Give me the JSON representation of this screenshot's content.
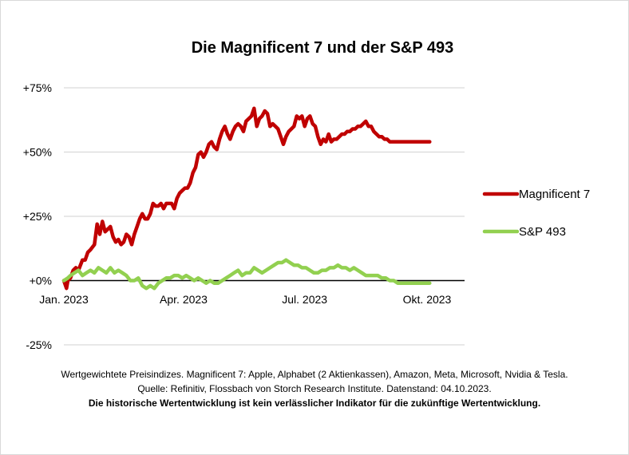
{
  "chart_data": {
    "type": "line",
    "title": "Die Magnificent 7 und der S&P 493",
    "xlabel": "",
    "ylabel": "",
    "ylim": [
      -25,
      75
    ],
    "yticks": [
      75,
      50,
      25,
      0,
      -25
    ],
    "ytick_labels": [
      "+75%",
      "+50%",
      "+25%",
      "+0%",
      "-25%"
    ],
    "xticks": [
      "Jan. 2023",
      "Apr. 2023",
      "Jul. 2023",
      "Okt. 2023"
    ],
    "xtick_days": [
      0,
      90,
      181,
      273
    ],
    "x_max_day": 276,
    "legend_position": "right",
    "series": [
      {
        "name": "Magnificent 7",
        "color": "#c00000",
        "days": [
          0,
          2,
          3,
          5,
          7,
          9,
          11,
          14,
          16,
          18,
          20,
          23,
          25,
          27,
          29,
          31,
          33,
          35,
          37,
          39,
          41,
          43,
          45,
          47,
          49,
          51,
          53,
          55,
          57,
          59,
          61,
          63,
          65,
          67,
          69,
          71,
          73,
          75,
          77,
          79,
          81,
          83,
          85,
          87,
          89,
          91,
          93,
          95,
          97,
          99,
          101,
          103,
          105,
          107,
          109,
          111,
          113,
          115,
          117,
          119,
          121,
          123,
          125,
          127,
          129,
          131,
          133,
          135,
          137,
          139,
          141,
          143,
          145,
          147,
          149,
          151,
          153,
          155,
          157,
          159,
          161,
          163,
          165,
          167,
          169,
          171,
          173,
          175,
          177,
          179,
          181,
          183,
          185,
          187,
          189,
          191,
          193,
          195,
          197,
          199,
          201,
          203,
          205,
          207,
          209,
          211,
          213,
          215,
          217,
          219,
          221,
          223,
          225,
          227,
          229,
          231,
          233,
          235,
          237,
          239,
          241,
          243,
          245,
          247,
          249,
          251,
          253,
          255,
          257,
          259,
          261,
          263,
          265,
          267,
          269,
          271,
          273,
          275
        ],
        "values": [
          0,
          -3,
          0,
          1,
          4,
          5,
          4,
          8,
          8,
          11,
          12,
          14,
          22,
          18,
          23,
          19,
          20,
          21,
          17,
          15,
          16,
          14,
          15,
          18,
          17,
          14,
          18,
          21,
          24,
          26,
          24,
          24,
          26,
          30,
          29,
          29,
          30,
          28,
          30,
          30,
          30,
          28,
          32,
          34,
          35,
          36,
          36,
          38,
          42,
          44,
          49,
          50,
          48,
          50,
          53,
          54,
          52,
          51,
          55,
          58,
          60,
          57,
          55,
          58,
          60,
          61,
          60,
          58,
          62,
          63,
          64,
          67,
          60,
          63,
          64,
          66,
          65,
          60,
          61,
          60,
          59,
          56,
          53,
          56,
          58,
          59,
          60,
          64,
          63,
          64,
          60,
          63,
          64,
          61,
          60,
          56,
          53,
          55,
          54,
          57,
          54,
          55,
          55,
          56,
          57,
          57,
          58,
          58,
          59,
          59,
          60,
          60,
          61,
          62,
          60,
          60,
          58,
          57,
          56,
          56,
          55,
          55,
          54,
          54,
          54,
          54,
          54,
          54,
          54,
          54,
          54,
          54,
          54,
          54,
          54,
          54,
          54,
          54
        ]
      },
      {
        "name": "S&P 493",
        "color": "#92d050",
        "days": [
          0,
          3,
          5,
          8,
          11,
          14,
          17,
          20,
          23,
          26,
          29,
          32,
          35,
          38,
          41,
          44,
          47,
          50,
          53,
          56,
          59,
          62,
          65,
          68,
          71,
          74,
          77,
          80,
          83,
          86,
          89,
          92,
          95,
          98,
          101,
          104,
          107,
          110,
          113,
          116,
          119,
          122,
          125,
          128,
          131,
          134,
          137,
          140,
          143,
          146,
          149,
          152,
          155,
          158,
          161,
          164,
          167,
          170,
          173,
          176,
          179,
          182,
          185,
          188,
          191,
          194,
          197,
          200,
          203,
          206,
          209,
          212,
          215,
          218,
          221,
          224,
          227,
          230,
          233,
          236,
          239,
          242,
          245,
          248,
          251,
          254,
          257,
          260,
          263,
          266,
          269,
          272,
          275
        ],
        "values": [
          0,
          1,
          2,
          3,
          4,
          2,
          3,
          4,
          3,
          5,
          4,
          3,
          5,
          3,
          4,
          3,
          2,
          0,
          0,
          1,
          -2,
          -3,
          -2,
          -3,
          -1,
          0,
          1,
          1,
          2,
          2,
          1,
          2,
          1,
          0,
          1,
          0,
          -1,
          0,
          -1,
          -1,
          0,
          1,
          2,
          3,
          4,
          2,
          3,
          3,
          5,
          4,
          3,
          4,
          5,
          6,
          7,
          7,
          8,
          7,
          6,
          6,
          5,
          5,
          4,
          3,
          3,
          4,
          4,
          5,
          5,
          6,
          5,
          5,
          4,
          5,
          4,
          3,
          2,
          2,
          2,
          2,
          1,
          1,
          0,
          0,
          -1,
          -1,
          -1,
          -1,
          -1,
          -1,
          -1,
          -1,
          -1
        ]
      }
    ]
  },
  "notes": {
    "line1": "Wertgewichtete Preisindizes. Magnificent 7: Apple, Alphabet (2 Aktienkassen), Amazon, Meta, Microsoft, Nvidia & Tesla.",
    "line2": "Quelle: Refinitiv, Flossbach von Storch Research Institute. Datenstand: 04.10.2023.",
    "disclaimer": "Die historische Wertentwicklung ist kein verlässlicher Indikator für die zukünftige Wertentwicklung."
  }
}
